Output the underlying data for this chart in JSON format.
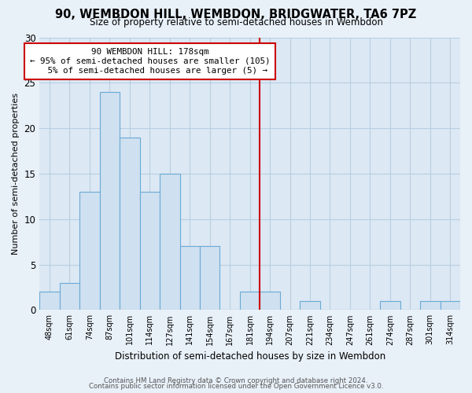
{
  "title": "90, WEMBDON HILL, WEMBDON, BRIDGWATER, TA6 7PZ",
  "subtitle": "Size of property relative to semi-detached houses in Wembdon",
  "xlabel": "Distribution of semi-detached houses by size in Wembdon",
  "ylabel": "Number of semi-detached properties",
  "bin_labels": [
    "48sqm",
    "61sqm",
    "74sqm",
    "87sqm",
    "101sqm",
    "114sqm",
    "127sqm",
    "141sqm",
    "154sqm",
    "167sqm",
    "181sqm",
    "194sqm",
    "207sqm",
    "221sqm",
    "234sqm",
    "247sqm",
    "261sqm",
    "274sqm",
    "287sqm",
    "301sqm",
    "314sqm"
  ],
  "bar_heights": [
    2,
    3,
    13,
    24,
    19,
    13,
    15,
    7,
    7,
    0,
    2,
    2,
    0,
    1,
    0,
    0,
    0,
    1,
    0,
    1,
    1
  ],
  "bar_color": "#cfe0f0",
  "bar_edge_color": "#6aaad4",
  "property_line_x": 10.5,
  "pct_smaller": 95,
  "n_smaller": 105,
  "pct_larger": 5,
  "n_larger": 5,
  "annotation_box_color": "#ffffff",
  "annotation_box_edge": "#cc0000",
  "property_line_color": "#cc0000",
  "ylim": [
    0,
    30
  ],
  "yticks": [
    0,
    5,
    10,
    15,
    20,
    25,
    30
  ],
  "footer_line1": "Contains HM Land Registry data © Crown copyright and database right 2024.",
  "footer_line2": "Contains public sector information licensed under the Open Government Licence v3.0.",
  "bg_color": "#e8f0f8",
  "plot_bg_color": "#dce8f4",
  "grid_color": "#b8cfe0"
}
